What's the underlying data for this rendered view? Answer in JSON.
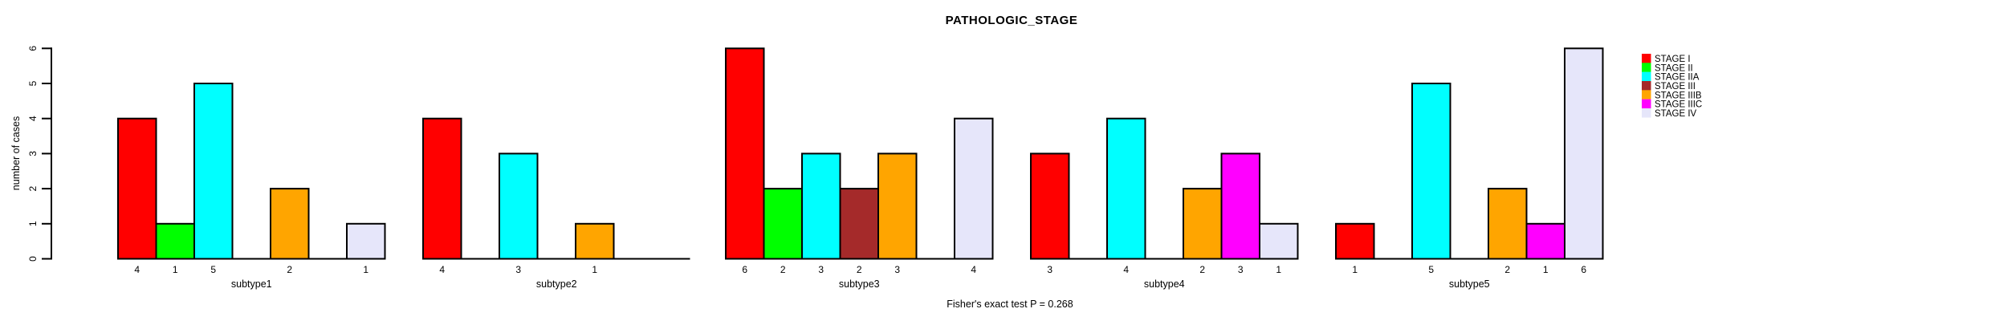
{
  "page": {
    "title": "PATHOLOGIC_STAGE",
    "footer": "Fisher's exact test P = 0.268"
  },
  "chart_data": {
    "type": "grouped_bar",
    "title": "PATHOLOGIC_STAGE",
    "ylabel": "number of cases",
    "xlabel": "",
    "ylim": [
      0,
      6
    ],
    "yticks": [
      0,
      1,
      2,
      3,
      4,
      5,
      6
    ],
    "grid": false,
    "legend_position": "right",
    "footer": "Fisher's exact test P = 0.268",
    "stages": [
      {
        "name": "STAGE I",
        "color": "#FF0000"
      },
      {
        "name": "STAGE II",
        "color": "#00FF00"
      },
      {
        "name": "STAGE IIA",
        "color": "#00FFFF"
      },
      {
        "name": "STAGE III",
        "color": "#A52A2A"
      },
      {
        "name": "STAGE IIIB",
        "color": "#FFA500"
      },
      {
        "name": "STAGE IIIC",
        "color": "#FF00FF"
      },
      {
        "name": "STAGE IV",
        "color": "#E6E6FA"
      }
    ],
    "categories": [
      "subtype1",
      "subtype2",
      "subtype3",
      "subtype4",
      "subtype5"
    ],
    "groups": [
      {
        "label": "subtype1",
        "values": [
          4,
          1,
          5,
          0,
          2,
          0,
          1
        ]
      },
      {
        "label": "subtype2",
        "values": [
          4,
          0,
          3,
          0,
          1,
          0,
          0
        ]
      },
      {
        "label": "subtype3",
        "values": [
          6,
          2,
          3,
          2,
          3,
          0,
          4
        ]
      },
      {
        "label": "subtype4",
        "values": [
          3,
          0,
          4,
          0,
          2,
          3,
          1
        ]
      },
      {
        "label": "subtype5",
        "values": [
          1,
          0,
          5,
          0,
          2,
          1,
          6
        ]
      }
    ],
    "bar_value_labels_shown_for_zero": false,
    "bar_outline_color": "#000000"
  }
}
